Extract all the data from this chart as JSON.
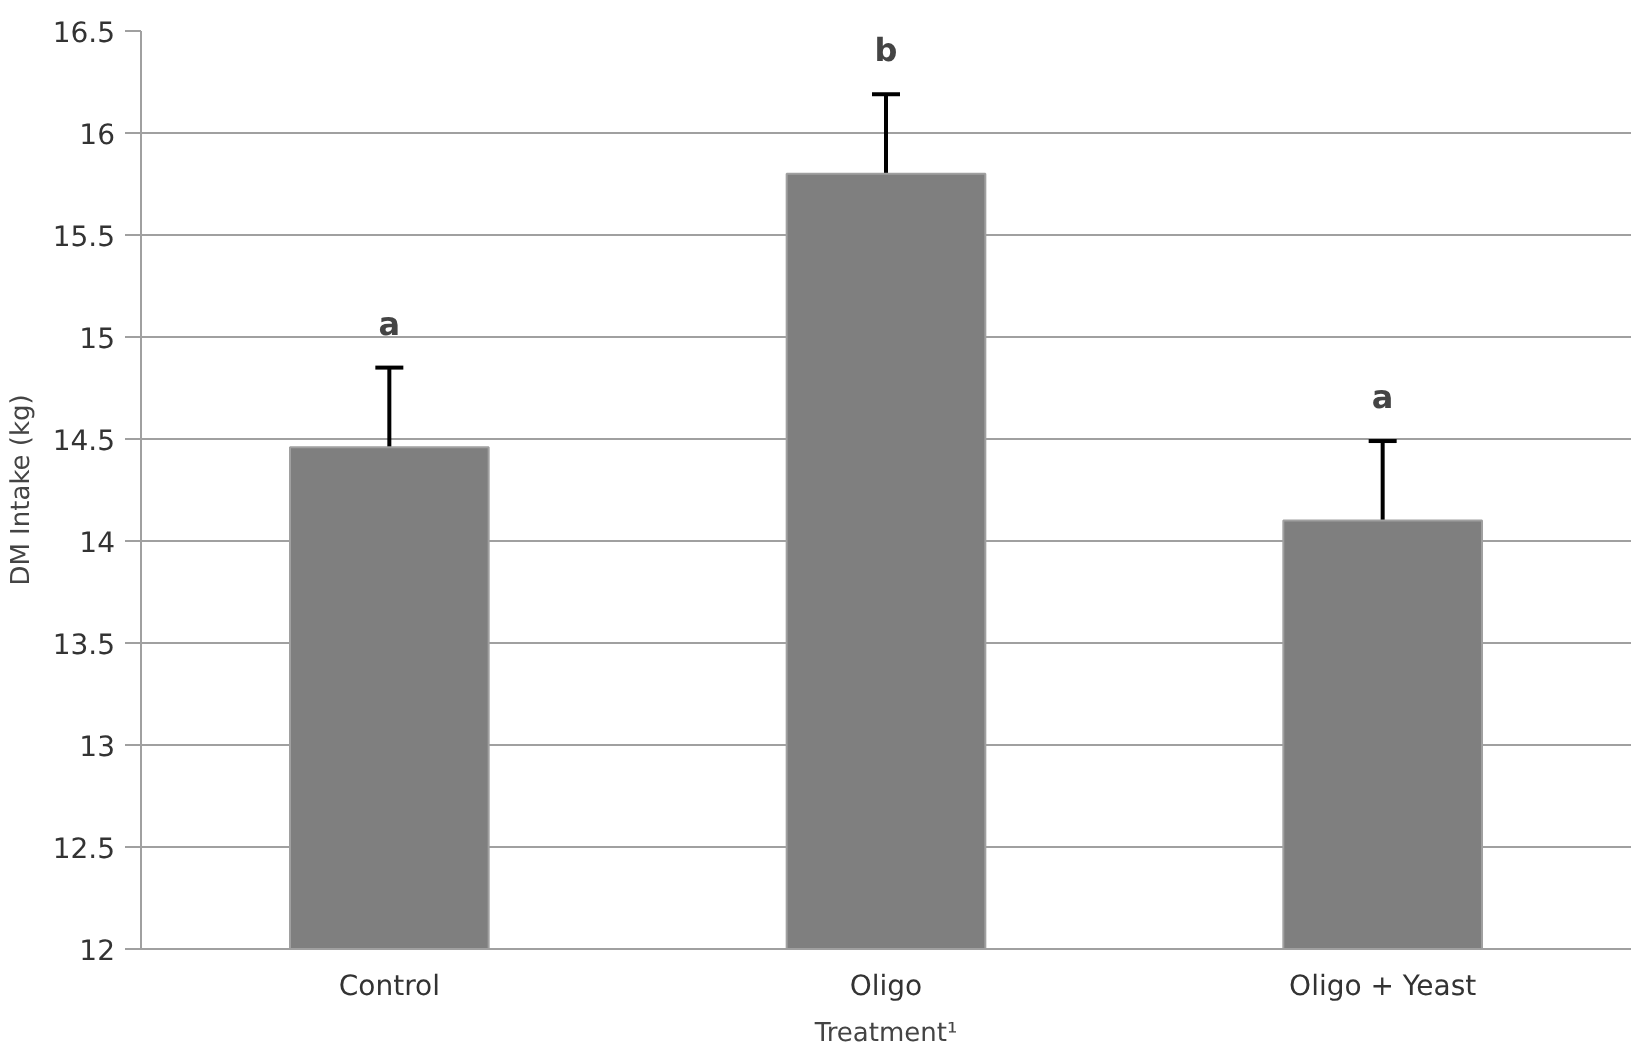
{
  "chart_data": {
    "type": "bar",
    "xlabel": "Treatment¹",
    "ylabel": "DM Intake (kg)",
    "categories": [
      "Control",
      "Oligo",
      "Oligo + Yeast"
    ],
    "values": [
      14.46,
      15.8,
      14.1
    ],
    "errors": [
      0.39,
      0.39,
      0.39
    ],
    "color": "#7f7f7f",
    "ylim": [
      12,
      16.5
    ],
    "yticks": [
      12,
      12.5,
      13,
      13.5,
      14,
      14.5,
      15,
      15.5,
      16,
      16.5
    ],
    "grid": "y",
    "annotations": [
      "a",
      "b",
      "a"
    ]
  }
}
